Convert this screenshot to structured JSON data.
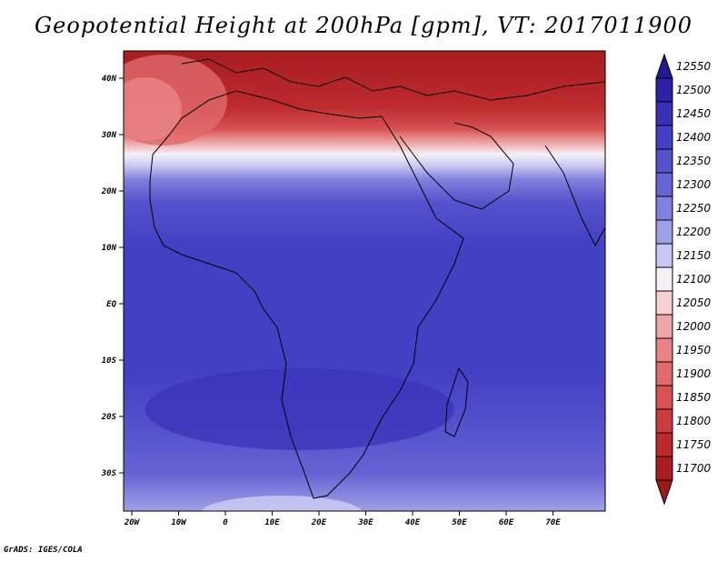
{
  "title": "Geopotential Height at 200hPa [gpm], VT: 2017011900",
  "credit": "GrADS: IGES/COLA",
  "map": {
    "lon_labels": [
      "20W",
      "10W",
      "0",
      "10E",
      "20E",
      "30E",
      "40E",
      "50E",
      "60E",
      "70E"
    ],
    "lat_labels": [
      "40N",
      "30N",
      "20N",
      "10N",
      "EQ",
      "10S",
      "20S",
      "30S"
    ]
  },
  "colorbar": {
    "levels": [
      "12550",
      "12500",
      "12450",
      "12400",
      "12350",
      "12300",
      "12250",
      "12200",
      "12150",
      "12100",
      "12050",
      "12000",
      "11950",
      "11900",
      "11850",
      "11800",
      "11750",
      "11700"
    ],
    "colors": {
      "12500": "#2e22a8",
      "12450": "#3a30b8",
      "12400": "#4440c4",
      "12350": "#5552cc",
      "12300": "#6664d4",
      "12250": "#8080de",
      "12200": "#a0a0e8",
      "12150": "#c8c8f2",
      "12100": "#f4f0f6",
      "12050": "#f7d0d2",
      "12000": "#f0a6a8",
      "11950": "#e88486",
      "11900": "#e06a6c",
      "11850": "#d85254",
      "11800": "#cc3c3e",
      "11750": "#bc2a2c",
      "11700": "#a81e20"
    },
    "top_color": "#221890",
    "bottom_color": "#9a1a1c"
  }
}
